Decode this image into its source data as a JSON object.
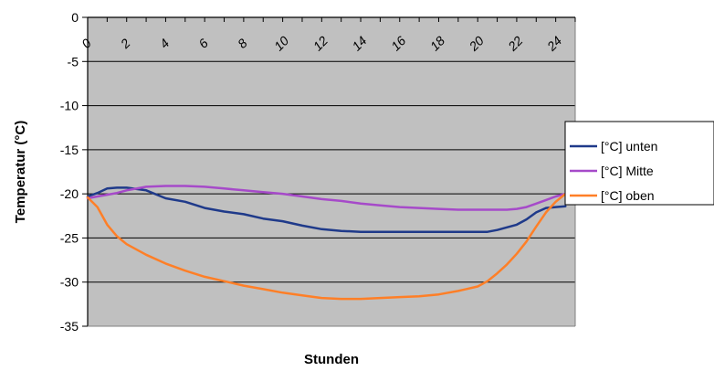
{
  "chart_data": {
    "type": "line",
    "title": "",
    "xlabel": "Stunden",
    "ylabel": "Temperatur (°C)",
    "xlim": [
      0,
      25
    ],
    "ylim": [
      -35,
      0
    ],
    "x_ticks": [
      "0",
      "2",
      "4",
      "6",
      "8",
      "10",
      "12",
      "14",
      "16",
      "18",
      "20",
      "22",
      "24"
    ],
    "y_ticks": [
      "0",
      "-5",
      "-10",
      "-15",
      "-20",
      "-25",
      "-30",
      "-35"
    ],
    "grid": true,
    "legend_position": "right",
    "x": [
      0,
      0.5,
      1,
      1.5,
      2,
      3,
      4,
      5,
      6,
      7,
      8,
      9,
      10,
      11,
      12,
      13,
      14,
      15,
      16,
      17,
      18,
      19,
      20,
      20.5,
      21,
      21.5,
      22,
      22.5,
      23,
      23.5,
      24,
      24.5
    ],
    "series": [
      {
        "name": "[°C] unten",
        "color": "#1f3a8a",
        "values": [
          -20.3,
          -19.9,
          -19.4,
          -19.3,
          -19.3,
          -19.6,
          -20.5,
          -20.9,
          -21.6,
          -22.0,
          -22.3,
          -22.8,
          -23.1,
          -23.6,
          -24.0,
          -24.2,
          -24.3,
          -24.3,
          -24.3,
          -24.3,
          -24.3,
          -24.3,
          -24.3,
          -24.3,
          -24.1,
          -23.8,
          -23.5,
          -22.9,
          -22.1,
          -21.6,
          -21.5,
          -21.4
        ]
      },
      {
        "name": "[°C] Mitte",
        "color": "#a64ac9",
        "values": [
          -20.5,
          -20.3,
          -20.1,
          -19.9,
          -19.6,
          -19.2,
          -19.1,
          -19.1,
          -19.2,
          -19.4,
          -19.6,
          -19.8,
          -20.0,
          -20.3,
          -20.6,
          -20.8,
          -21.1,
          -21.3,
          -21.5,
          -21.6,
          -21.7,
          -21.8,
          -21.8,
          -21.8,
          -21.8,
          -21.8,
          -21.7,
          -21.5,
          -21.1,
          -20.7,
          -20.3,
          -20.0
        ]
      },
      {
        "name": "[°C] oben",
        "color": "#ff7f27",
        "values": [
          -20.4,
          -21.5,
          -23.5,
          -24.8,
          -25.7,
          -26.9,
          -27.9,
          -28.7,
          -29.4,
          -29.9,
          -30.4,
          -30.8,
          -31.2,
          -31.5,
          -31.8,
          -31.9,
          -31.9,
          -31.8,
          -31.7,
          -31.6,
          -31.4,
          -31.0,
          -30.5,
          -29.9,
          -29.0,
          -28.0,
          -26.8,
          -25.4,
          -23.7,
          -22.1,
          -20.9,
          -20.0
        ]
      }
    ]
  }
}
